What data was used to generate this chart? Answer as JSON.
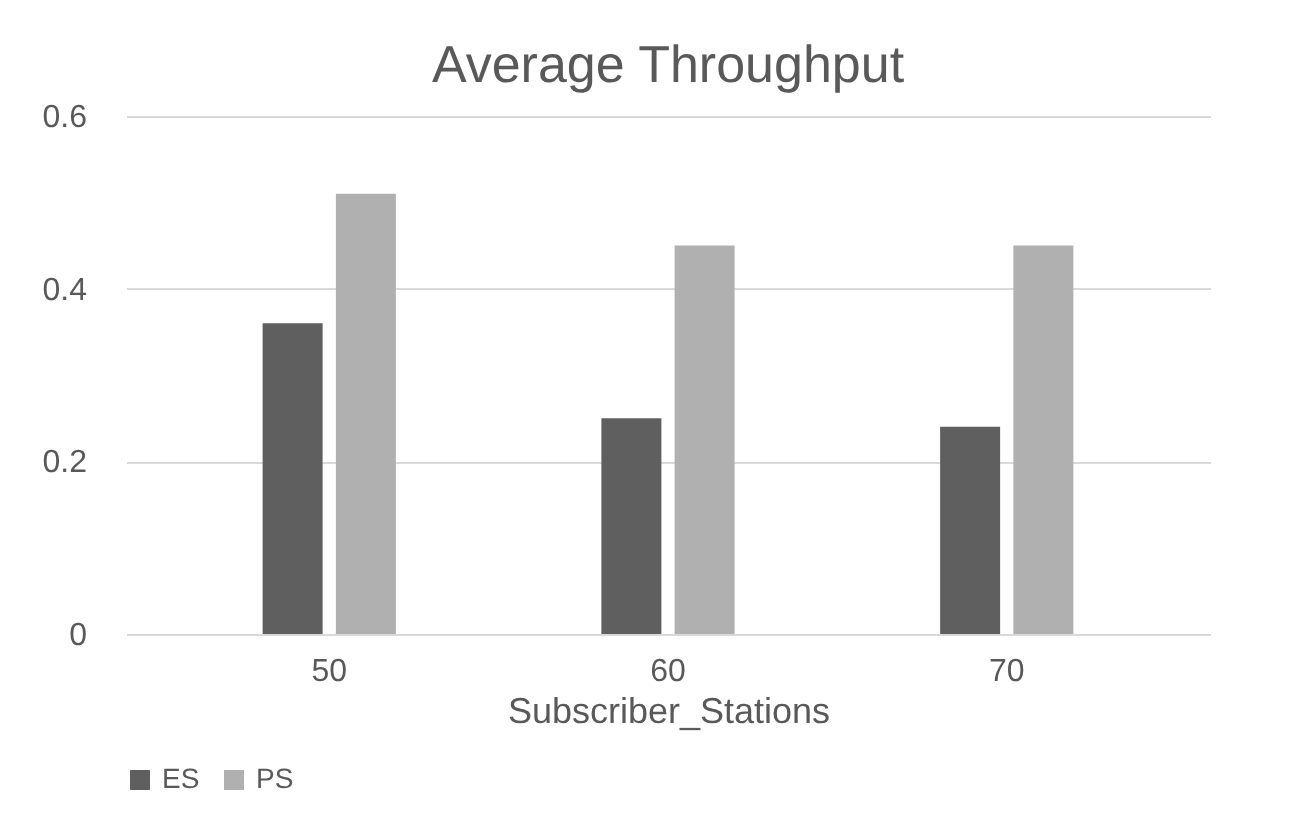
{
  "chart_data": {
    "type": "bar",
    "title": "Average Throughput",
    "xlabel": "Subscriber_Stations",
    "categories": [
      "50",
      "60",
      "70"
    ],
    "series": [
      {
        "name": "ES",
        "color": "#5f5f5f",
        "values": [
          0.36,
          0.25,
          0.24
        ]
      },
      {
        "name": "PS",
        "color": "#b0b0b0",
        "values": [
          0.51,
          0.45,
          0.45
        ]
      }
    ],
    "ylim": [
      0,
      0.6
    ],
    "yticks": [
      0,
      0.2,
      0.4,
      0.6
    ],
    "grid": "y",
    "legend": "bottom"
  }
}
